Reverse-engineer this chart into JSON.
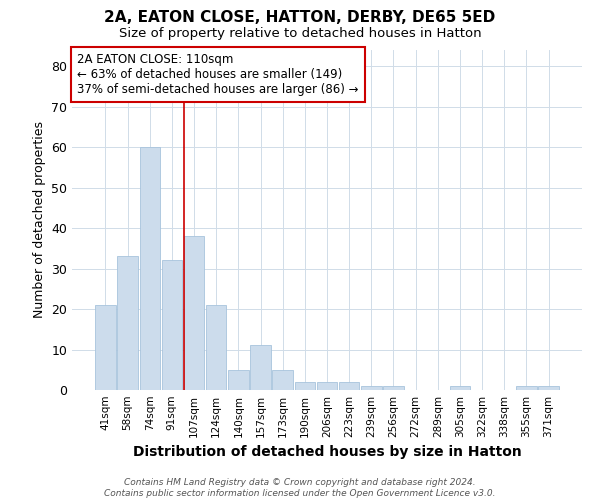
{
  "title": "2A, EATON CLOSE, HATTON, DERBY, DE65 5ED",
  "subtitle": "Size of property relative to detached houses in Hatton",
  "xlabel": "Distribution of detached houses by size in Hatton",
  "ylabel": "Number of detached properties",
  "categories": [
    "41sqm",
    "58sqm",
    "74sqm",
    "91sqm",
    "107sqm",
    "124sqm",
    "140sqm",
    "157sqm",
    "173sqm",
    "190sqm",
    "206sqm",
    "223sqm",
    "239sqm",
    "256sqm",
    "272sqm",
    "289sqm",
    "305sqm",
    "322sqm",
    "338sqm",
    "355sqm",
    "371sqm"
  ],
  "values": [
    21,
    33,
    60,
    32,
    38,
    21,
    5,
    11,
    5,
    2,
    2,
    2,
    1,
    1,
    0,
    0,
    1,
    0,
    0,
    1,
    1
  ],
  "bar_color": "#ccdcec",
  "bar_edgecolor": "#a8c4dc",
  "vline_index": 4,
  "vline_color": "#cc0000",
  "annotation_box_text": "2A EATON CLOSE: 110sqm\n← 63% of detached houses are smaller (149)\n37% of semi-detached houses are larger (86) →",
  "annotation_box_edgecolor": "#cc0000",
  "ylim_max": 84,
  "yticks": [
    0,
    10,
    20,
    30,
    40,
    50,
    60,
    70,
    80
  ],
  "footer_line1": "Contains HM Land Registry data © Crown copyright and database right 2024.",
  "footer_line2": "Contains public sector information licensed under the Open Government Licence v3.0.",
  "bg_color": "#ffffff",
  "plot_bg_color": "#ffffff",
  "grid_color": "#d0dce8"
}
